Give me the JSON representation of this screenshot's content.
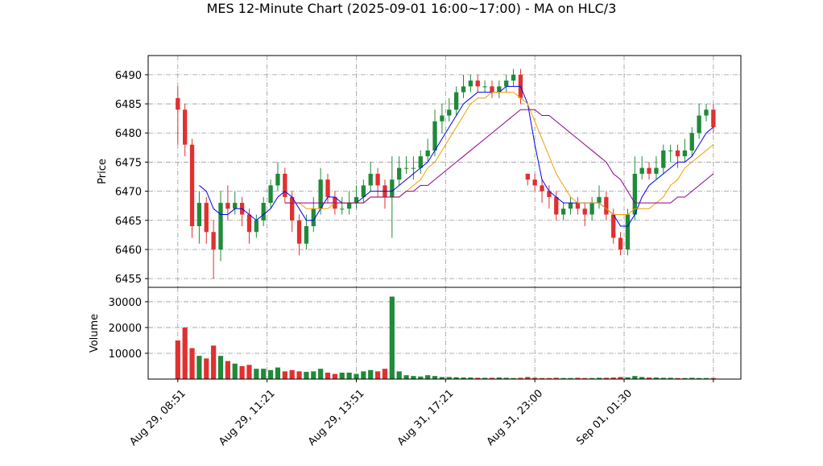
{
  "chart_data": {
    "type": "candlestick",
    "title": "MES 12-Minute Chart (2025-09-01 16:00~17:00) - MA on HLC/3",
    "ylabel": "Price",
    "volume_ylabel": "Volume",
    "up_color": "#1f8a3a",
    "down_color": "#e03030",
    "grid": true,
    "xlim": [
      -8.3,
      157.7
    ],
    "xticks": [
      {
        "value": 0,
        "label": "Aug 29, 08:51"
      },
      {
        "value": 25,
        "label": "Aug 29, 11:21"
      },
      {
        "value": 50,
        "label": "Aug 29, 13:51"
      },
      {
        "value": 75,
        "label": "Aug 31, 17:21"
      },
      {
        "value": 100,
        "label": "Aug 31, 23:00"
      },
      {
        "value": 125,
        "label": "Sep 01, 01:30"
      },
      {
        "value": 150,
        "label": ""
      }
    ],
    "ylim": [
      6453.5,
      6493.3
    ],
    "yticks": [
      6455,
      6460,
      6465,
      6470,
      6475,
      6480,
      6485,
      6490
    ],
    "volume_ylim": [
      0,
      35600
    ],
    "volume_yticks": [
      10000,
      20000,
      30000
    ],
    "x": [
      0,
      2,
      4,
      6,
      8,
      10,
      12,
      14,
      16,
      18,
      20,
      22,
      24,
      26,
      28,
      30,
      32,
      34,
      36,
      38,
      40,
      42,
      44,
      46,
      48,
      50,
      52,
      54,
      56,
      58,
      60,
      62,
      64,
      66,
      68,
      70,
      72,
      74,
      76,
      78,
      80,
      82,
      84,
      86,
      88,
      90,
      92,
      94,
      96,
      98,
      100,
      102,
      104,
      106,
      108,
      110,
      112,
      114,
      116,
      118,
      120,
      122,
      124,
      126,
      128,
      130,
      132,
      134,
      136,
      138,
      140,
      142,
      144,
      146,
      148,
      150
    ],
    "open": [
      6486,
      6484,
      6478,
      6464,
      6468,
      6463,
      6460,
      6468,
      6467,
      6468,
      6466,
      6463,
      6465,
      6468,
      6471,
      6473,
      6469,
      6465,
      6461,
      6464,
      6467,
      6472,
      6469,
      6467,
      6467,
      6468,
      6469,
      6471,
      6473,
      6471,
      6469,
      6472,
      6474,
      6474,
      6474,
      6476,
      6477,
      6482,
      6483,
      6484,
      6487,
      6488,
      6489,
      6488,
      6488,
      6487,
      6488,
      6489,
      6490,
      6473,
      6472,
      6471,
      6470,
      6469,
      6466,
      6467,
      6468,
      6467,
      6466,
      6468,
      6469,
      6466,
      6462,
      6460,
      6466,
      6473,
      6474,
      6473,
      6474,
      6477,
      6477,
      6476,
      6477,
      6480,
      6483,
      6484
    ],
    "high": [
      6488,
      6485,
      6479,
      6470,
      6469,
      6465,
      6470,
      6471,
      6470,
      6469,
      6467,
      6466,
      6469,
      6472,
      6475,
      6474,
      6470,
      6466,
      6466,
      6469,
      6474,
      6473,
      6470,
      6469,
      6470,
      6471,
      6472,
      6475,
      6474,
      6472,
      6476,
      6476,
      6476,
      6476,
      6477,
      6479,
      6484,
      6485,
      6486,
      6488,
      6490,
      6490,
      6490,
      6489,
      6489,
      6489,
      6490,
      6491,
      6491,
      6473,
      6473,
      6472,
      6471,
      6470,
      6468,
      6469,
      6469,
      6468,
      6469,
      6471,
      6470,
      6467,
      6463,
      6467,
      6476,
      6476,
      6475,
      6476,
      6478,
      6478,
      6478,
      6479,
      6481,
      6485,
      6485,
      6485
    ],
    "low": [
      6478,
      6476,
      6462,
      6461,
      6461,
      6455,
      6458,
      6465,
      6466,
      6464,
      6461,
      6462,
      6464,
      6467,
      6470,
      6468,
      6463,
      6459,
      6460,
      6463,
      6466,
      6468,
      6466,
      6466,
      6466,
      6467,
      6468,
      6470,
      6469,
      6467,
      6462,
      6471,
      6473,
      6472,
      6473,
      6475,
      6476,
      6480,
      6482,
      6483,
      6486,
      6487,
      6487,
      6487,
      6486,
      6486,
      6487,
      6488,
      6485,
      6471,
      6470,
      6468,
      6467,
      6465,
      6465,
      6466,
      6466,
      6464,
      6465,
      6467,
      6465,
      6461,
      6459,
      6459,
      6465,
      6472,
      6472,
      6472,
      6473,
      6475,
      6474,
      6475,
      6476,
      6479,
      6482,
      6480
    ],
    "close": [
      6484,
      6478,
      6464,
      6468,
      6463,
      6460,
      6468,
      6467,
      6468,
      6466,
      6463,
      6465,
      6468,
      6471,
      6473,
      6469,
      6465,
      6461,
      6464,
      6467,
      6472,
      6469,
      6467,
      6467,
      6468,
      6469,
      6471,
      6473,
      6471,
      6469,
      6472,
      6474,
      6474,
      6474,
      6476,
      6477,
      6482,
      6483,
      6484,
      6487,
      6488,
      6489,
      6488,
      6488,
      6487,
      6488,
      6489,
      6490,
      6486,
      6472,
      6471,
      6470,
      6469,
      6466,
      6467,
      6468,
      6467,
      6466,
      6468,
      6469,
      6466,
      6462,
      6460,
      6466,
      6473,
      6474,
      6473,
      6474,
      6477,
      6477,
      6476,
      6477,
      6480,
      6483,
      6484,
      6481
    ],
    "volume": [
      15000,
      20000,
      12000,
      9000,
      8000,
      13000,
      9000,
      7000,
      6000,
      5000,
      5500,
      4000,
      4000,
      3500,
      4500,
      3000,
      3500,
      3000,
      2800,
      3000,
      4000,
      2500,
      2000,
      2500,
      2500,
      2000,
      3000,
      3500,
      3000,
      4000,
      32000,
      3000,
      1500,
      1200,
      1000,
      1500,
      1200,
      800,
      800,
      700,
      600,
      600,
      500,
      500,
      500,
      600,
      500,
      400,
      500,
      800,
      500,
      400,
      400,
      500,
      400,
      400,
      500,
      400,
      400,
      500,
      500,
      600,
      800,
      700,
      1200,
      800,
      600,
      600,
      500,
      500,
      400,
      400,
      500,
      400,
      400,
      400
    ],
    "series": [
      {
        "color": "#0000ee",
        "values": [
          null,
          null,
          null,
          6471,
          6470,
          6467,
          6466,
          6466,
          6467,
          6467,
          6466,
          6465,
          6466,
          6467,
          6469,
          6470,
          6469,
          6467,
          6465,
          6465,
          6467,
          6469,
          6469,
          6468,
          6468,
          6468,
          6469,
          6470,
          6470,
          6470,
          6470,
          6471,
          6472,
          6473,
          6474,
          6475,
          6477,
          6479,
          6481,
          6483,
          6485,
          6486,
          6487,
          6487,
          6487,
          6487,
          6488,
          6488,
          6488,
          6485,
          6478,
          6472,
          6470,
          6469,
          6468,
          6468,
          6468,
          6468,
          6468,
          6468,
          6467,
          6466,
          6464,
          6464,
          6466,
          6469,
          6471,
          6472,
          6473,
          6474,
          6475,
          6475,
          6476,
          6478,
          6480,
          6481
        ]
      },
      {
        "color": "#f0a000",
        "values": [
          null,
          null,
          null,
          null,
          null,
          null,
          null,
          null,
          null,
          null,
          null,
          null,
          null,
          null,
          null,
          6468,
          6468,
          6468,
          6467,
          6467,
          6467,
          6467,
          6468,
          6468,
          6468,
          6468,
          6468,
          6469,
          6469,
          6469,
          6469,
          6469,
          6470,
          6471,
          6472,
          6474,
          6475,
          6477,
          6479,
          6481,
          6483,
          6485,
          6486,
          6486,
          6487,
          6487,
          6487,
          6487,
          6486,
          6485,
          6482,
          6479,
          6476,
          6473,
          6471,
          6469,
          6468,
          6468,
          6468,
          6468,
          6467,
          6466,
          6466,
          6466,
          6467,
          6467,
          6467,
          6468,
          6469,
          6471,
          6472,
          6474,
          6475,
          6476,
          6477,
          6478
        ]
      },
      {
        "color": "#8b008b",
        "values": [
          null,
          null,
          null,
          null,
          null,
          null,
          null,
          null,
          null,
          null,
          null,
          null,
          null,
          null,
          null,
          6468,
          6468,
          6468,
          6468,
          6468,
          6468,
          6468,
          6468,
          6468,
          6468,
          6468,
          6468,
          6469,
          6469,
          6469,
          6469,
          6469,
          6470,
          6470,
          6471,
          6471,
          6472,
          6473,
          6474,
          6475,
          6476,
          6477,
          6478,
          6479,
          6480,
          6481,
          6482,
          6483,
          6484,
          6484,
          6484,
          6483,
          6483,
          6482,
          6481,
          6480,
          6479,
          6478,
          6477,
          6476,
          6475,
          6473,
          6472,
          6470,
          6468,
          6468,
          6468,
          6468,
          6468,
          6468,
          6469,
          6469,
          6470,
          6471,
          6472,
          6473
        ]
      }
    ]
  }
}
